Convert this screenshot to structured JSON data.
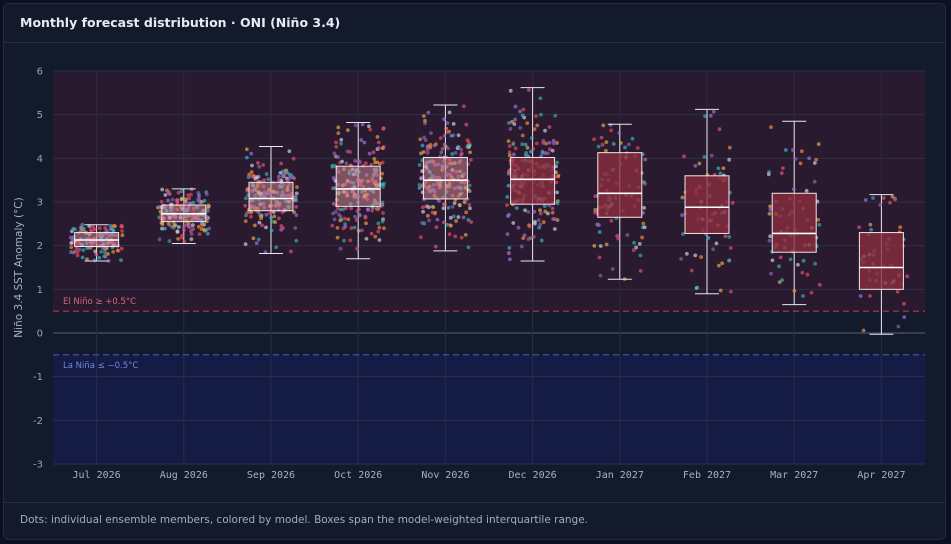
{
  "panel": {
    "title": "Monthly forecast distribution · ONI (Niño 3.4)",
    "caption": "Dots: individual ensemble members, colored by model. Boxes span the model-weighted interquartile range."
  },
  "chart_data": {
    "type": "box",
    "xlabel": "",
    "ylabel": "Niño 3.4 SST Anomaly (°C)",
    "ylim": [
      -3,
      6
    ],
    "yticks": [
      -3,
      -2,
      -1,
      0,
      1,
      2,
      3,
      4,
      5,
      6
    ],
    "grid": true,
    "categories": [
      "Jul 2026",
      "Aug 2026",
      "Sep 2026",
      "Oct 2026",
      "Nov 2026",
      "Dec 2026",
      "Jan 2027",
      "Feb 2027",
      "Mar 2027",
      "Apr 2027"
    ],
    "boxes": [
      {
        "category": "Jul 2026",
        "min": 1.65,
        "q1": 1.98,
        "median": 2.13,
        "q3": 2.3,
        "max": 2.48,
        "member_count": 120
      },
      {
        "category": "Aug 2026",
        "min": 2.05,
        "q1": 2.55,
        "median": 2.73,
        "q3": 2.93,
        "max": 3.3,
        "member_count": 160
      },
      {
        "category": "Sep 2026",
        "min": 1.82,
        "q1": 2.8,
        "median": 3.08,
        "q3": 3.45,
        "max": 4.27,
        "member_count": 180
      },
      {
        "category": "Oct 2026",
        "min": 1.7,
        "q1": 2.9,
        "median": 3.3,
        "q3": 3.82,
        "max": 4.82,
        "member_count": 200
      },
      {
        "category": "Nov 2026",
        "min": 1.88,
        "q1": 3.07,
        "median": 3.5,
        "q3": 4.02,
        "max": 5.22,
        "member_count": 210
      },
      {
        "category": "Dec 2026",
        "min": 1.65,
        "q1": 2.95,
        "median": 3.52,
        "q3": 4.02,
        "max": 5.62,
        "member_count": 200
      },
      {
        "category": "Jan 2027",
        "min": 1.23,
        "q1": 2.65,
        "median": 3.2,
        "q3": 4.13,
        "max": 4.78,
        "member_count": 90
      },
      {
        "category": "Feb 2027",
        "min": 0.9,
        "q1": 2.28,
        "median": 2.88,
        "q3": 3.6,
        "max": 5.12,
        "member_count": 70
      },
      {
        "category": "Mar 2027",
        "min": 0.65,
        "q1": 1.85,
        "median": 2.28,
        "q3": 3.2,
        "max": 4.85,
        "member_count": 70
      },
      {
        "category": "Apr 2027",
        "min": -0.03,
        "q1": 1.0,
        "median": 1.5,
        "q3": 2.3,
        "max": 3.17,
        "member_count": 45
      }
    ],
    "thresholds": [
      {
        "value": 0.5,
        "label": "El Niño ≥ +0.5°C",
        "color": "#b03a4a"
      },
      {
        "value": -0.5,
        "label": "La Niña ≤ −0.5°C",
        "color": "#3f5bb3"
      }
    ],
    "model_colors": [
      "#e0507a",
      "#f08a3c",
      "#3aa6a6",
      "#9b6fd6",
      "#d8a84a",
      "#c7cde0",
      "#2fb5c9",
      "#e14b5a",
      "#8a5fb0"
    ],
    "colors": {
      "warm_region": "#2a1a2f",
      "cool_region": "#141c46",
      "box_fill_early": "#d28a96",
      "box_fill_late": "#8c2e3f",
      "box_stroke": "#f2e6ea",
      "whisker": "#e8e8ee"
    }
  }
}
